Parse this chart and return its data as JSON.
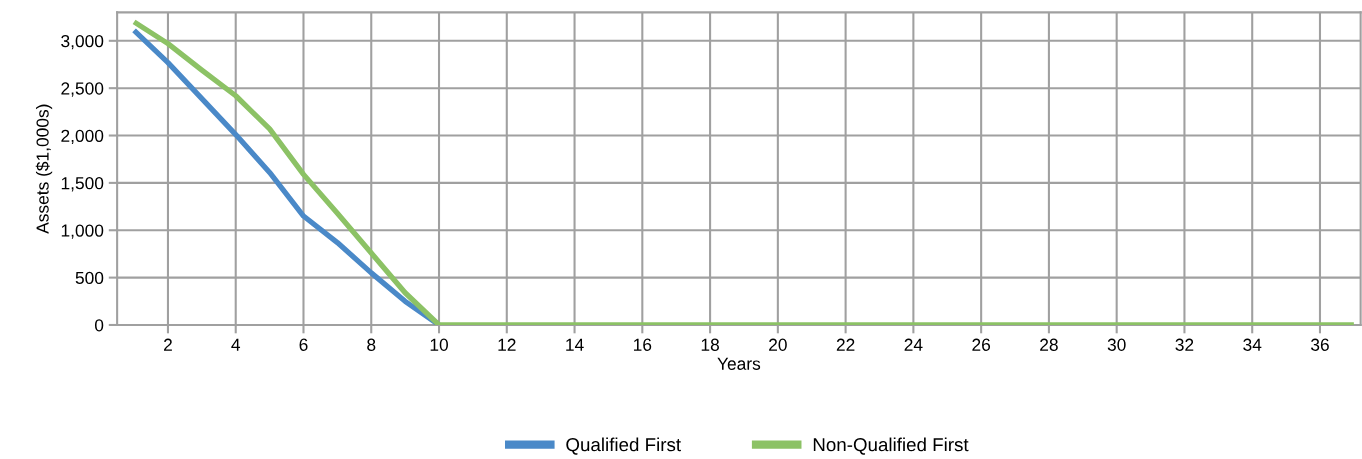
{
  "chart_data": {
    "type": "line",
    "xlabel": "Years",
    "ylabel": "Assets ($1,000s)",
    "x": [
      1,
      2,
      3,
      4,
      5,
      6,
      7,
      8,
      9,
      10,
      11,
      12,
      13,
      14,
      15,
      16,
      17,
      18,
      19,
      20,
      21,
      22,
      23,
      24,
      25,
      26,
      27,
      28,
      29,
      30,
      31,
      32,
      33,
      34,
      35,
      36,
      37
    ],
    "xlim": [
      0.5,
      37.2
    ],
    "xticks": [
      2,
      4,
      6,
      8,
      10,
      12,
      14,
      16,
      18,
      20,
      22,
      24,
      26,
      28,
      30,
      32,
      34,
      36
    ],
    "ylim": [
      0,
      3300
    ],
    "yticks": [
      0,
      {
        "value": 500,
        "label": "500"
      },
      {
        "value": 1000,
        "label": "1,000"
      },
      {
        "value": 1500,
        "label": "1,500"
      },
      {
        "value": 2000,
        "label": "2,000"
      },
      {
        "value": 2500,
        "label": "2,500"
      },
      {
        "value": 3000,
        "label": "3,000"
      }
    ],
    "grid": true,
    "legend": "bottom",
    "marker": "none",
    "line_style": "solid",
    "series": [
      {
        "name": "Qualified First",
        "color": "#4a89c8",
        "values": [
          3110,
          2770,
          2390,
          2010,
          1610,
          1150,
          870,
          550,
          250,
          0,
          null,
          null,
          null,
          null,
          null,
          null,
          null,
          null,
          null,
          null,
          null,
          null,
          null,
          null,
          null,
          null,
          null,
          null,
          null,
          null,
          null,
          null,
          null,
          null,
          null,
          null,
          null
        ]
      },
      {
        "name": "Non-Qualified First",
        "color": "#8cc265",
        "values": [
          3200,
          2970,
          2690,
          2420,
          2070,
          1590,
          1180,
          760,
          340,
          0,
          0,
          0,
          0,
          0,
          0,
          0,
          0,
          0,
          0,
          0,
          0,
          0,
          0,
          0,
          0,
          0,
          0,
          0,
          0,
          0,
          0,
          0,
          0,
          0,
          0,
          0,
          0
        ]
      }
    ]
  }
}
